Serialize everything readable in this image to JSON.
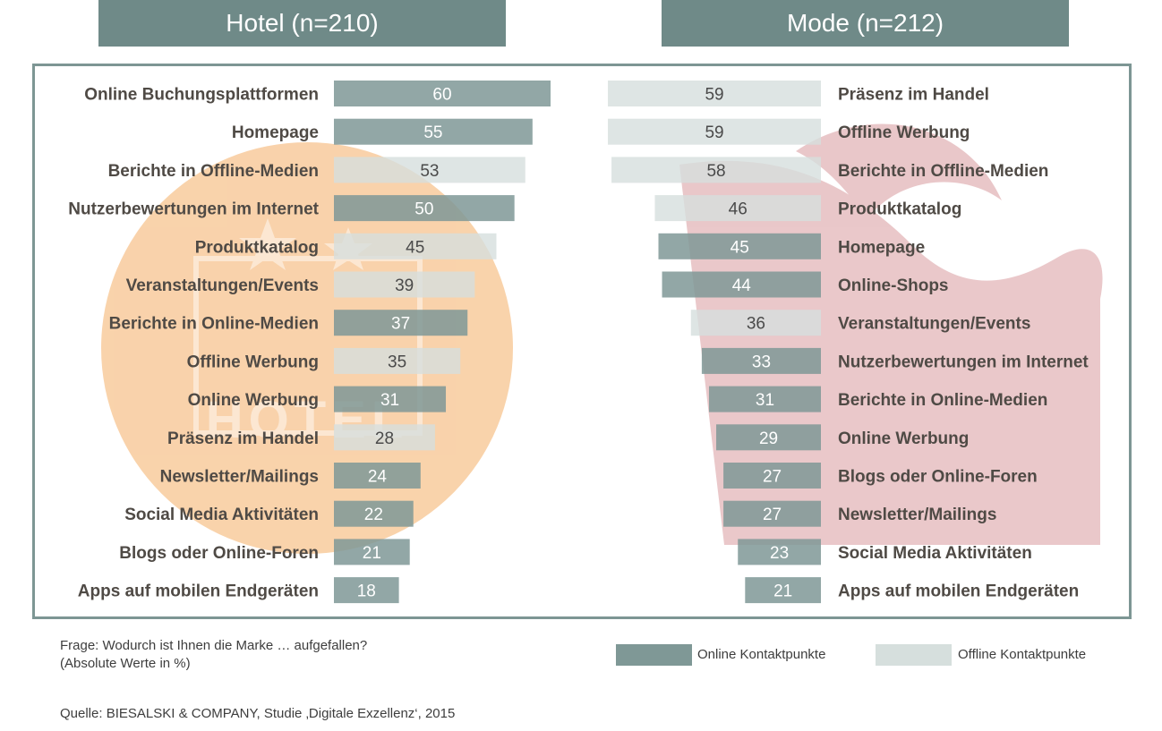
{
  "headers": {
    "left": "Hotel (n=210)",
    "right": "Mode (n=212)"
  },
  "colors": {
    "header": "#6f8a88",
    "online": "#7f9896",
    "offline": "#d6dfdd",
    "frame": "#7d9694",
    "label": "#4f4a45",
    "watermark_left": "#f7c48f",
    "watermark_right": "#dca3a6"
  },
  "chart_data": [
    {
      "type": "bar",
      "orientation": "horizontal",
      "title": "Hotel (n=210)",
      "xlim": [
        0,
        60
      ],
      "categories": [
        "Online Buchungsplattformen",
        "Homepage",
        "Berichte in Offline-Medien",
        "Nutzerbewertungen im Internet",
        "Produktkatalog",
        "Veranstaltungen/Events",
        "Berichte in Online-Medien",
        "Offline Werbung",
        "Online Werbung",
        "Präsenz im Handel",
        "Newsletter/Mailings",
        "Social Media Aktivitäten",
        "Blogs oder Online-Foren",
        "Apps auf mobilen Endgeräten"
      ],
      "values": [
        60,
        55,
        53,
        50,
        45,
        39,
        37,
        35,
        31,
        28,
        24,
        22,
        21,
        18
      ],
      "kind": [
        "online",
        "online",
        "offline",
        "online",
        "offline",
        "offline",
        "online",
        "offline",
        "online",
        "offline",
        "online",
        "online",
        "online",
        "online"
      ]
    },
    {
      "type": "bar",
      "orientation": "horizontal",
      "title": "Mode (n=212)",
      "xlim": [
        0,
        60
      ],
      "categories": [
        "Präsenz im Handel",
        "Offline Werbung",
        "Berichte in Offline-Medien",
        "Produktkatalog",
        "Homepage",
        "Online-Shops",
        "Veranstaltungen/Events",
        "Nutzerbewertungen im Internet",
        "Berichte in Online-Medien",
        "Online Werbung",
        "Blogs oder Online-Foren",
        "Newsletter/Mailings",
        "Social Media Aktivitäten",
        "Apps auf mobilen Endgeräten"
      ],
      "values": [
        59,
        59,
        58,
        46,
        45,
        44,
        36,
        33,
        31,
        29,
        27,
        27,
        23,
        21
      ],
      "kind": [
        "offline",
        "offline",
        "offline",
        "offline",
        "online",
        "online",
        "offline",
        "online",
        "online",
        "online",
        "online",
        "online",
        "online",
        "online"
      ]
    }
  ],
  "watermark_text": "HOTEL",
  "legend": {
    "online": "Online  Kontaktpunkte",
    "offline": "Offline Kontaktpunkte"
  },
  "footnotes": {
    "question": "Frage: Wodurch ist Ihnen die Marke … aufgefallen?",
    "unit": "(Absolute  Werte in %)",
    "source": "Quelle:  BIESALSKI & COMPANY,  Studie ‚Digitale Exzellenz‘,  2015"
  }
}
